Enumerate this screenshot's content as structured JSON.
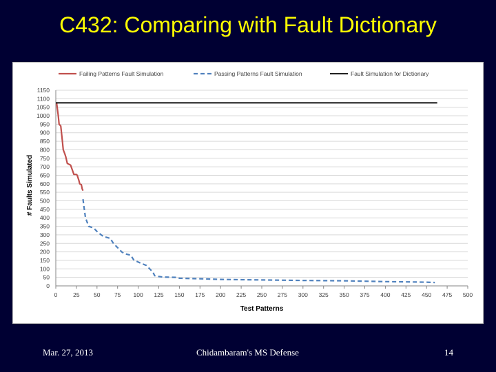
{
  "slide": {
    "title": "C432: Comparing with Fault Dictionary",
    "footer_left": "Mar. 27, 2013",
    "footer_center": "Chidambaram's MS Defense",
    "page_number": "14"
  },
  "colors": {
    "background": "#000033",
    "title": "#ffff00",
    "failing": "#c0504d",
    "passing": "#4f81bd",
    "dictionary": "#000000"
  },
  "chart_data": {
    "type": "line",
    "xlabel": "Test Patterns",
    "ylabel": "# Faults Simulated",
    "xlim": [
      0,
      500
    ],
    "ylim": [
      0,
      1150
    ],
    "xticks": [
      0,
      25,
      50,
      75,
      100,
      125,
      150,
      175,
      200,
      225,
      250,
      275,
      300,
      325,
      350,
      375,
      400,
      425,
      450,
      475,
      500
    ],
    "yticks": [
      0,
      50,
      100,
      150,
      200,
      250,
      300,
      350,
      400,
      450,
      500,
      550,
      600,
      650,
      700,
      750,
      800,
      850,
      900,
      950,
      1000,
      1050,
      1100,
      1150
    ],
    "grid": "horizontal",
    "legend_position": "top",
    "series": [
      {
        "name": "Failing Patterns Fault Simulation",
        "style": "solid",
        "x": [
          1,
          3,
          4,
          6,
          8,
          9,
          11,
          12,
          14,
          18,
          22,
          25,
          26,
          28,
          29,
          31,
          32,
          33
        ],
        "y": [
          1075,
          1000,
          950,
          940,
          850,
          800,
          775,
          760,
          720,
          710,
          655,
          655,
          650,
          620,
          600,
          595,
          570,
          560
        ]
      },
      {
        "name": "Passing Patterns Fault Simulation",
        "style": "dashed",
        "x": [
          33,
          34,
          36,
          40,
          46,
          50,
          55,
          58,
          66,
          70,
          72,
          74,
          80,
          83,
          91,
          95,
          98,
          100,
          110,
          118,
          120,
          125,
          130,
          148,
          150,
          175,
          200,
          250,
          300,
          350,
          400,
          450,
          460
        ],
        "y": [
          510,
          470,
          400,
          350,
          340,
          320,
          300,
          290,
          280,
          250,
          240,
          230,
          200,
          190,
          180,
          150,
          145,
          140,
          120,
          80,
          60,
          55,
          52,
          50,
          45,
          42,
          38,
          35,
          32,
          30,
          25,
          22,
          20
        ]
      },
      {
        "name": "Fault Simulation  for Dictionary",
        "style": "solid",
        "x": [
          0,
          463
        ],
        "y": [
          1076,
          1076
        ]
      }
    ]
  }
}
